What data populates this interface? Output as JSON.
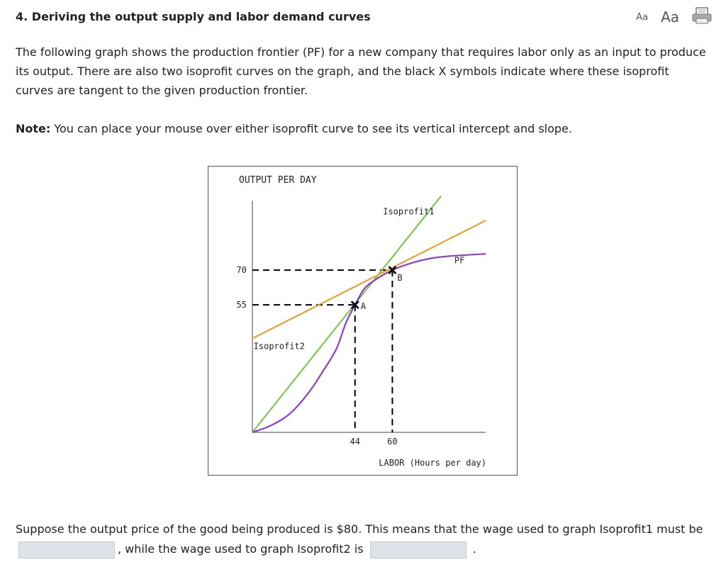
{
  "header": {
    "title": "4. Deriving the output supply and labor demand curves"
  },
  "toolbar": {
    "font_small_label": "Aa",
    "font_large_label": "Aa",
    "print_icon": "print-icon"
  },
  "intro": {
    "text": "The following graph shows the production frontier (PF) for a new company that requires labor only as an input to produce its output. There are also two isoprofit curves on the graph, and the black X symbols indicate where these isoprofit curves are tangent to the given production frontier."
  },
  "note": {
    "label": "Note:",
    "text": " You can place your mouse over either isoprofit curve to see its vertical intercept and slope."
  },
  "chart_data": {
    "type": "line",
    "ylabel": "OUTPUT PER DAY",
    "xlabel": "LABOR (Hours per day)",
    "x_ticks": [
      "44",
      "60"
    ],
    "y_ticks": [
      "70",
      "55"
    ],
    "xlim": [
      0,
      100
    ],
    "ylim": [
      0,
      100
    ],
    "series": [
      {
        "name": "PF",
        "color": "#8a3fcf",
        "x": [
          0,
          8,
          16,
          24,
          30,
          36,
          40,
          44,
          48,
          53,
          60,
          68,
          76,
          84,
          100
        ],
        "y": [
          0,
          3,
          8,
          17,
          26,
          36,
          47,
          55,
          62,
          66,
          70,
          73,
          75,
          76,
          77
        ]
      },
      {
        "name": "Isoprofit1",
        "color": "#7ec850",
        "x": [
          0,
          80.9
        ],
        "y": [
          0,
          102
        ]
      },
      {
        "name": "Isoprofit2",
        "color": "#f0a030",
        "x": [
          0,
          100
        ],
        "y": [
          40.5,
          91.4
        ]
      }
    ],
    "points": [
      {
        "label": "A",
        "x": 44,
        "y": 55
      },
      {
        "label": "B",
        "x": 60,
        "y": 70
      }
    ]
  },
  "question": {
    "part1": "Suppose the output price of the good being produced is $80. This means that the wage used to graph Isoprofit1 must be",
    "part2": ", while the wage used to graph Isoprofit2 is",
    "part3": "."
  }
}
